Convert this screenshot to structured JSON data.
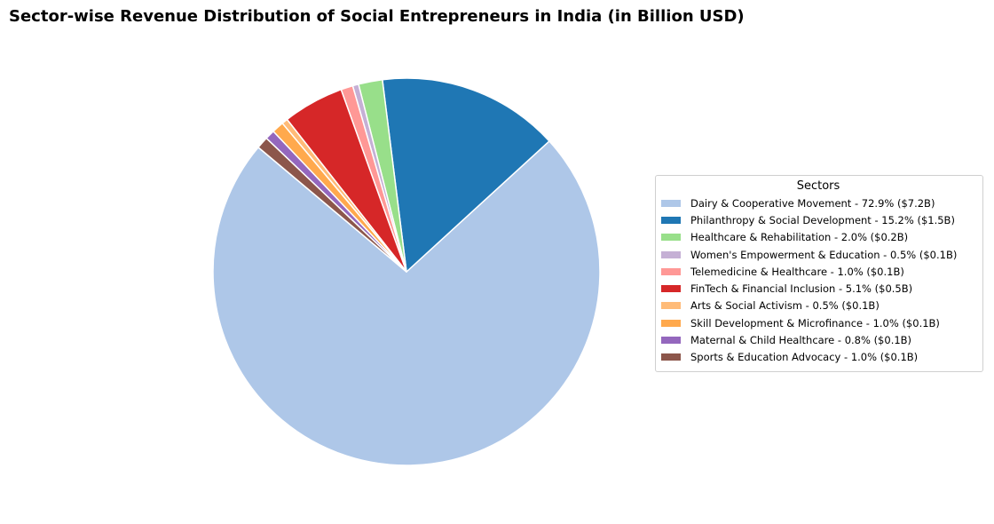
{
  "chart_data": {
    "type": "pie",
    "title": "Sector-wise Revenue Distribution of Social Entrepreneurs in India (in Billion USD)",
    "legend_title": "Sectors",
    "legend_position": "right",
    "start_angle_deg": 140,
    "direction": "counterclockwise",
    "edge_color": "#ffffff",
    "slices": [
      {
        "label": "Dairy & Cooperative Movement - 72.9% ($7.2B)",
        "percent": 72.9,
        "color": "#aec7e8"
      },
      {
        "label": "Philanthropy & Social Development - 15.2% ($1.5B)",
        "percent": 15.2,
        "color": "#1f77b4"
      },
      {
        "label": "Healthcare & Rehabilitation - 2.0% ($0.2B)",
        "percent": 2.0,
        "color": "#98df8a"
      },
      {
        "label": "Women's Empowerment & Education - 0.5% ($0.1B)",
        "percent": 0.5,
        "color": "#c5b0d5"
      },
      {
        "label": "Telemedicine & Healthcare - 1.0% ($0.1B)",
        "percent": 1.0,
        "color": "#ff9896"
      },
      {
        "label": "FinTech & Financial Inclusion - 5.1% ($0.5B)",
        "percent": 5.1,
        "color": "#d62728"
      },
      {
        "label": "Arts & Social Activism - 0.5% ($0.1B)",
        "percent": 0.5,
        "color": "#ffbb78"
      },
      {
        "label": "Skill Development & Microfinance - 1.0% ($0.1B)",
        "percent": 1.0,
        "color": "#ffa94d"
      },
      {
        "label": "Maternal & Child Healthcare - 0.8% ($0.1B)",
        "percent": 0.8,
        "color": "#9467bd"
      },
      {
        "label": "Sports & Education Advocacy - 1.0% ($0.1B)",
        "percent": 1.0,
        "color": "#8c564b"
      }
    ]
  }
}
